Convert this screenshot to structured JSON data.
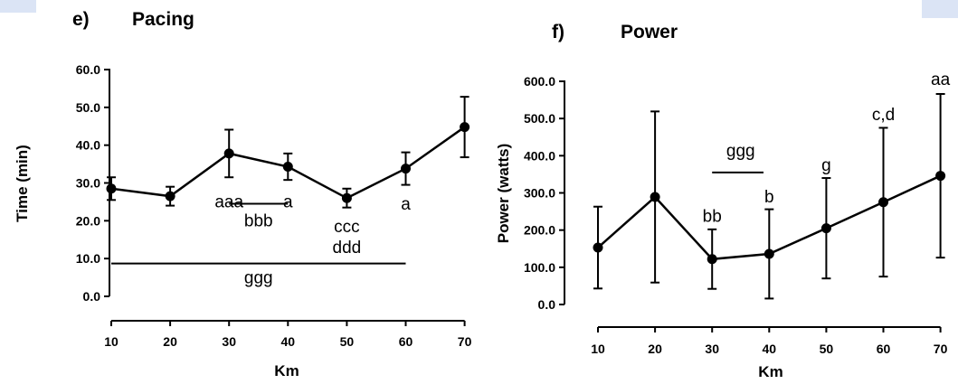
{
  "chart_data": [
    {
      "type": "line",
      "panel_letter": "e)",
      "title": "Pacing",
      "xlabel": "Km",
      "ylabel": "Time (min)",
      "x": [
        10,
        20,
        30,
        40,
        50,
        60,
        70
      ],
      "x_tick_labels": [
        "10",
        "20",
        "30",
        "40",
        "50",
        "60",
        "70"
      ],
      "y_tick_labels": [
        "0.0",
        "10.0",
        "20.0",
        "30.0",
        "40.0",
        "50.0",
        "60.0"
      ],
      "ylim": [
        0,
        60
      ],
      "values": [
        28.5,
        26.5,
        37.8,
        34.3,
        26.0,
        33.8,
        44.8
      ],
      "error": [
        3.0,
        2.5,
        6.3,
        3.5,
        2.5,
        4.3,
        8.0
      ],
      "annotations": [
        {
          "text": "aaa",
          "x": 30,
          "y": 23.5
        },
        {
          "text": "a",
          "x": 40,
          "y": 23.5
        },
        {
          "text": "bbb",
          "x": 35,
          "y": 18.5
        },
        {
          "text": "ccc",
          "x": 50,
          "y": 17.0
        },
        {
          "text": "ddd",
          "x": 50,
          "y": 11.5
        },
        {
          "text": "a",
          "x": 60,
          "y": 23.0
        },
        {
          "text": "ggg",
          "x": 35,
          "y": 3.5
        }
      ],
      "brackets": [
        {
          "x1": 30,
          "x2": 40,
          "y": 24.5
        },
        {
          "x1": 10,
          "x2": 60,
          "y": 8.7
        }
      ]
    },
    {
      "type": "line",
      "panel_letter": "f)",
      "title": "Power",
      "xlabel": "Km",
      "ylabel": "Power (watts)",
      "x": [
        10,
        20,
        30,
        40,
        50,
        60,
        70
      ],
      "x_tick_labels": [
        "10",
        "20",
        "30",
        "40",
        "50",
        "60",
        "70"
      ],
      "y_tick_labels": [
        "0.0",
        "100.0",
        "200.0",
        "300.0",
        "400.0",
        "500.0",
        "600.0"
      ],
      "ylim": [
        0,
        600
      ],
      "values": [
        153,
        289,
        122,
        136,
        205,
        275,
        346
      ],
      "error": [
        110,
        230,
        80,
        120,
        135,
        200,
        220
      ],
      "annotations": [
        {
          "text": "bb",
          "x": 30,
          "y": 222
        },
        {
          "text": "ggg",
          "x": 35,
          "y": 398
        },
        {
          "text": "b",
          "x": 40,
          "y": 275
        },
        {
          "text": "g",
          "x": 50,
          "y": 360
        },
        {
          "text": "c,d",
          "x": 60,
          "y": 495
        },
        {
          "text": "aa",
          "x": 70,
          "y": 590
        }
      ],
      "brackets": [
        {
          "x1": 30,
          "x2": 39,
          "y": 355
        }
      ]
    }
  ]
}
